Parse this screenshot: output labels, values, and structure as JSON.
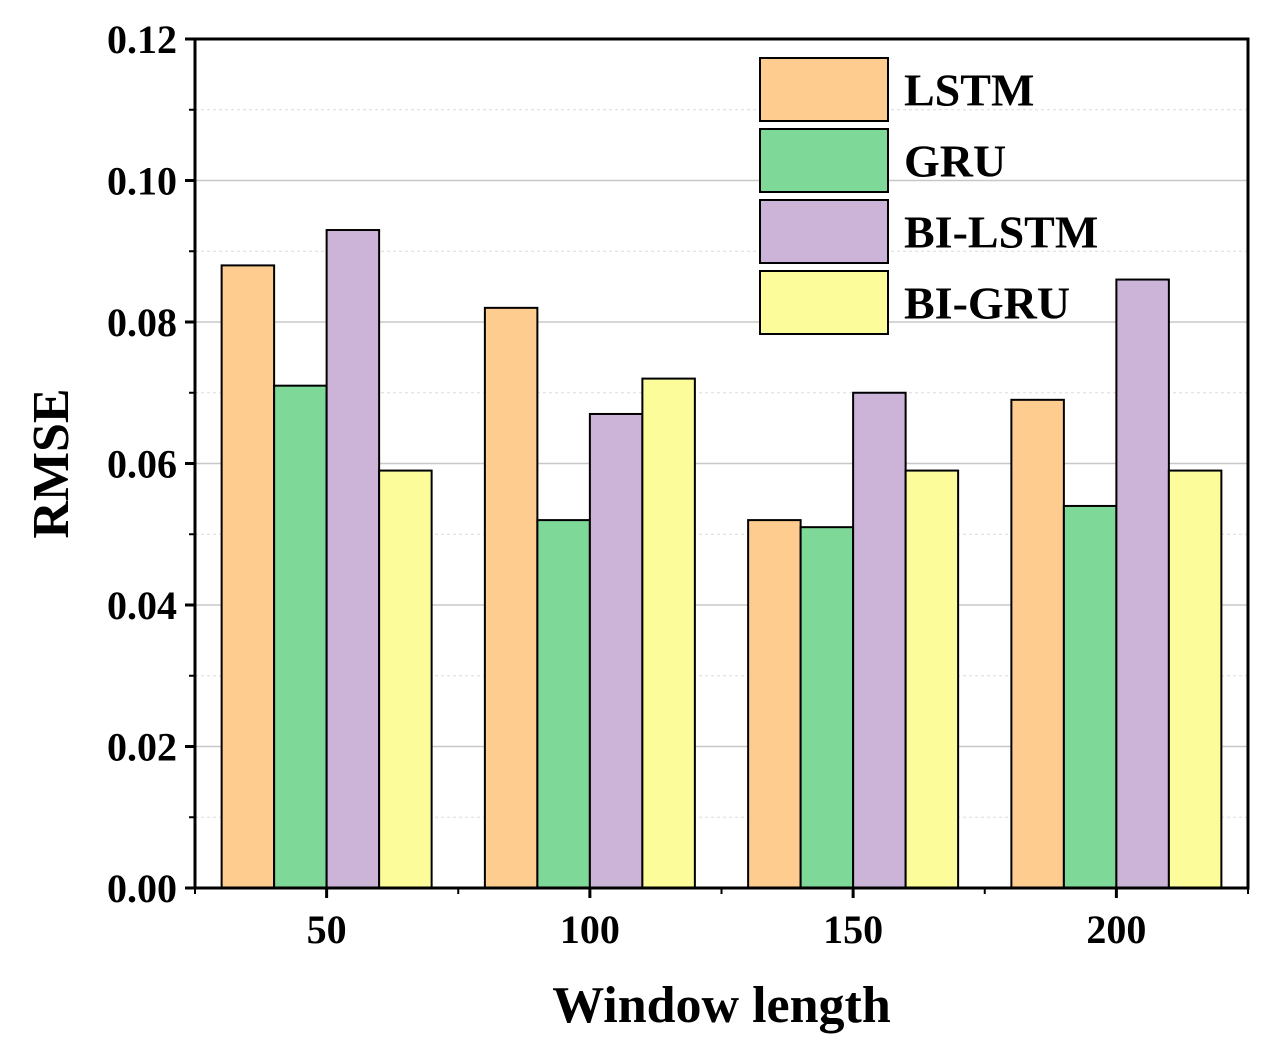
{
  "chart_data": {
    "type": "bar",
    "xlabel": "Window length",
    "ylabel": "RMSE",
    "categories": [
      "50",
      "100",
      "150",
      "200"
    ],
    "ylim": [
      0,
      0.12
    ],
    "yticks": [
      "0.00",
      "0.02",
      "0.04",
      "0.06",
      "0.08",
      "0.10",
      "0.12"
    ],
    "grid": true,
    "legend_position": "top-right",
    "series": [
      {
        "name": "LSTM",
        "color": "#FFCC8F",
        "values": [
          0.088,
          0.082,
          0.052,
          0.069
        ]
      },
      {
        "name": "GRU",
        "color": "#7ED898",
        "values": [
          0.071,
          0.052,
          0.051,
          0.054
        ]
      },
      {
        "name": "BI-LSTM",
        "color": "#CCB4D8",
        "values": [
          0.093,
          0.067,
          0.07,
          0.086
        ]
      },
      {
        "name": "BI-GRU",
        "color": "#FCFC9A",
        "values": [
          0.059,
          0.072,
          0.059,
          0.059
        ]
      }
    ]
  }
}
